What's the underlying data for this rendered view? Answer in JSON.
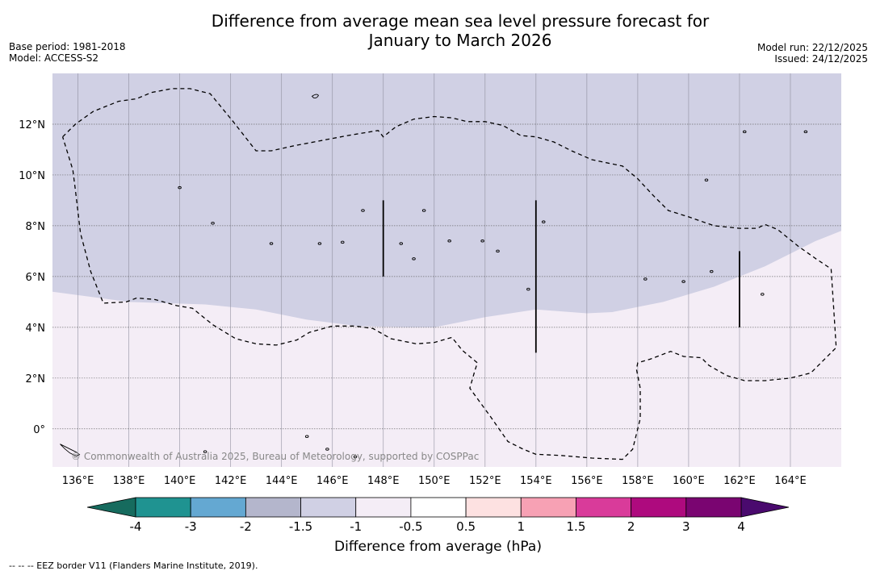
{
  "title": {
    "line1": "Difference from average mean sea level pressure forecast for",
    "line2": "January to March 2026"
  },
  "meta": {
    "base_period": "Base period: 1981-2018",
    "model": "Model: ACCESS-S2",
    "model_run": "Model run: 22/12/2025",
    "issued": "Issued: 24/12/2025"
  },
  "map": {
    "lon_range": [
      135,
      166
    ],
    "lat_range": [
      -1.5,
      14
    ],
    "lon_ticks": [
      {
        "value": 136,
        "label": "136°E"
      },
      {
        "value": 138,
        "label": "138°E"
      },
      {
        "value": 140,
        "label": "140°E"
      },
      {
        "value": 142,
        "label": "142°E"
      },
      {
        "value": 144,
        "label": "144°E"
      },
      {
        "value": 146,
        "label": "146°E"
      },
      {
        "value": 148,
        "label": "148°E"
      },
      {
        "value": 150,
        "label": "150°E"
      },
      {
        "value": 152,
        "label": "152°E"
      },
      {
        "value": 154,
        "label": "154°E"
      },
      {
        "value": 156,
        "label": "156°E"
      },
      {
        "value": 158,
        "label": "158°E"
      },
      {
        "value": 160,
        "label": "160°E"
      },
      {
        "value": 162,
        "label": "162°E"
      },
      {
        "value": 164,
        "label": "164°E"
      }
    ],
    "lat_ticks": [
      {
        "value": 0,
        "label": "0°"
      },
      {
        "value": 2,
        "label": "2°N"
      },
      {
        "value": 4,
        "label": "4°N"
      },
      {
        "value": 6,
        "label": "6°N"
      },
      {
        "value": 8,
        "label": "8°N"
      },
      {
        "value": 10,
        "label": "10°N"
      },
      {
        "value": 12,
        "label": "12°N"
      }
    ],
    "regions": [
      {
        "category": "-1.5 to -1",
        "color": "#d0d0e4",
        "boundary": [
          [
            135,
            5.4
          ],
          [
            138,
            5.0
          ],
          [
            141,
            4.9
          ],
          [
            143,
            4.7
          ],
          [
            145,
            4.3
          ],
          [
            147,
            4.05
          ],
          [
            149,
            4.0
          ],
          [
            150,
            4.0
          ],
          [
            152,
            4.4
          ],
          [
            154,
            4.7
          ],
          [
            156,
            4.55
          ],
          [
            157,
            4.6
          ],
          [
            159,
            5.0
          ],
          [
            161,
            5.6
          ],
          [
            163,
            6.4
          ],
          [
            165,
            7.4
          ],
          [
            166,
            7.8
          ]
        ]
      },
      {
        "category": "-1 to -0.5",
        "color": "#f4edf6"
      }
    ],
    "eez_border": [
      [
        135.4,
        11.5
      ],
      [
        135.9,
        12.0
      ],
      [
        136.6,
        12.5
      ],
      [
        137.6,
        12.9
      ],
      [
        138.3,
        13.0
      ],
      [
        138.9,
        13.25
      ],
      [
        139.7,
        13.4
      ],
      [
        140.4,
        13.4
      ],
      [
        141.2,
        13.2
      ],
      [
        142.1,
        12.1
      ],
      [
        143.0,
        10.95
      ],
      [
        143.6,
        10.95
      ],
      [
        144.5,
        11.15
      ],
      [
        145.8,
        11.4
      ],
      [
        146.6,
        11.55
      ],
      [
        147.8,
        11.75
      ],
      [
        148.0,
        11.5
      ],
      [
        148.5,
        11.9
      ],
      [
        149.2,
        12.2
      ],
      [
        150.0,
        12.3
      ],
      [
        150.7,
        12.25
      ],
      [
        151.3,
        12.1
      ],
      [
        152.0,
        12.1
      ],
      [
        152.7,
        11.95
      ],
      [
        153.4,
        11.55
      ],
      [
        154.0,
        11.5
      ],
      [
        154.7,
        11.3
      ],
      [
        155.4,
        10.95
      ],
      [
        156.2,
        10.6
      ],
      [
        157.4,
        10.35
      ],
      [
        158.0,
        9.85
      ],
      [
        158.6,
        9.2
      ],
      [
        159.2,
        8.6
      ],
      [
        160.0,
        8.35
      ],
      [
        161.0,
        8.0
      ],
      [
        162.0,
        7.9
      ],
      [
        162.7,
        7.9
      ],
      [
        163.0,
        8.05
      ],
      [
        163.5,
        7.85
      ],
      [
        164.3,
        7.2
      ],
      [
        165.0,
        6.7
      ],
      [
        165.6,
        6.3
      ],
      [
        165.7,
        4.8
      ],
      [
        165.8,
        3.2
      ],
      [
        165.4,
        2.8
      ],
      [
        164.8,
        2.2
      ],
      [
        164.0,
        2.0
      ],
      [
        163.0,
        1.9
      ],
      [
        162.2,
        1.9
      ],
      [
        161.5,
        2.1
      ],
      [
        160.8,
        2.5
      ],
      [
        160.5,
        2.8
      ],
      [
        159.8,
        2.85
      ],
      [
        159.3,
        3.05
      ],
      [
        158.5,
        2.75
      ],
      [
        158.0,
        2.6
      ],
      [
        157.95,
        2.35
      ],
      [
        158.1,
        1.6
      ],
      [
        158.1,
        0.4
      ],
      [
        157.8,
        -0.8
      ],
      [
        157.4,
        -1.2
      ],
      [
        156.2,
        -1.15
      ],
      [
        155.0,
        -1.05
      ],
      [
        154.0,
        -1.0
      ],
      [
        153.5,
        -0.8
      ],
      [
        152.9,
        -0.5
      ],
      [
        152.2,
        0.5
      ],
      [
        151.4,
        1.6
      ],
      [
        151.6,
        2.3
      ],
      [
        151.7,
        2.6
      ],
      [
        151.1,
        3.1
      ],
      [
        150.7,
        3.6
      ],
      [
        150.0,
        3.4
      ],
      [
        149.3,
        3.35
      ],
      [
        148.3,
        3.55
      ],
      [
        147.6,
        3.95
      ],
      [
        146.9,
        4.05
      ],
      [
        146.0,
        4.05
      ],
      [
        145.1,
        3.8
      ],
      [
        144.6,
        3.5
      ],
      [
        143.8,
        3.3
      ],
      [
        143.0,
        3.35
      ],
      [
        142.2,
        3.55
      ],
      [
        141.3,
        4.1
      ],
      [
        140.5,
        4.75
      ],
      [
        139.9,
        4.85
      ],
      [
        139.0,
        5.1
      ],
      [
        138.3,
        5.15
      ],
      [
        137.9,
        5.0
      ],
      [
        137.0,
        4.95
      ],
      [
        136.5,
        6.2
      ],
      [
        136.1,
        7.7
      ],
      [
        135.9,
        9.4
      ],
      [
        135.8,
        10.2
      ],
      [
        135.4,
        11.5
      ]
    ],
    "vertical_segments": [
      {
        "lon": 148,
        "lat_from": 6,
        "lat_to": 9
      },
      {
        "lon": 154,
        "lat_from": 3,
        "lat_to": 9
      },
      {
        "lon": 162,
        "lat_from": 4,
        "lat_to": 7
      }
    ],
    "islands": [
      [
        140.0,
        9.5
      ],
      [
        141.3,
        8.1
      ],
      [
        143.6,
        7.3
      ],
      [
        145.5,
        7.3
      ],
      [
        146.4,
        7.35
      ],
      [
        147.2,
        8.6
      ],
      [
        148.7,
        7.3
      ],
      [
        149.2,
        6.7
      ],
      [
        149.6,
        8.6
      ],
      [
        150.6,
        7.4
      ],
      [
        151.9,
        7.4
      ],
      [
        152.5,
        7.0
      ],
      [
        153.7,
        5.5
      ],
      [
        154.3,
        8.15
      ],
      [
        158.3,
        5.9
      ],
      [
        159.8,
        5.8
      ],
      [
        160.7,
        9.8
      ],
      [
        160.9,
        6.2
      ],
      [
        162.2,
        11.7
      ],
      [
        162.9,
        5.3
      ],
      [
        164.6,
        11.7
      ],
      [
        145.8,
        -0.8
      ],
      [
        141.0,
        -0.9
      ],
      [
        146.9,
        -1.1
      ],
      [
        145.0,
        -0.3
      ]
    ]
  },
  "copyright": "© Commonwealth of Australia 2025, Bureau of Meteorology, supported by COSPPac",
  "colorbar": {
    "title": "Difference from average (hPa)",
    "boundaries": [
      {
        "value": -4,
        "label": "-4"
      },
      {
        "value": -3,
        "label": "-3"
      },
      {
        "value": -2,
        "label": "-2"
      },
      {
        "value": -1.5,
        "label": "-1.5"
      },
      {
        "value": -1,
        "label": "-1"
      },
      {
        "value": -0.5,
        "label": "-0.5"
      },
      {
        "value": 0.5,
        "label": "0.5"
      },
      {
        "value": 1,
        "label": "1"
      },
      {
        "value": 1.5,
        "label": "1.5"
      },
      {
        "value": 2,
        "label": "2"
      },
      {
        "value": 3,
        "label": "3"
      },
      {
        "value": 4,
        "label": "4"
      }
    ],
    "under_color": "#166b5e",
    "over_color": "#4a0a6e",
    "colors": [
      "#1f9391",
      "#64a8d2",
      "#b4b6cc",
      "#d0d0e4",
      "#f4edf6",
      "#ffffff",
      "#fde1e1",
      "#f7a1b4",
      "#d93b9a",
      "#ae0a7e",
      "#7a0571"
    ]
  },
  "footnote": "--  --  -- EEZ border V11 (Flanders Marine Institute, 2019)."
}
